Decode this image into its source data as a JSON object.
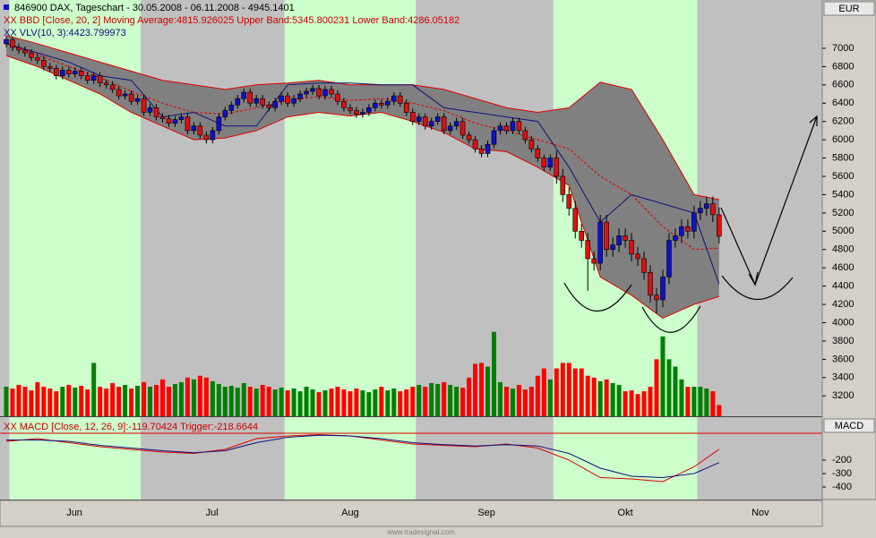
{
  "chart_data": [
    {
      "type": "candlestick",
      "title": "846900  DAX, Tageschart - 30.05.2008 - 06.11.2008 - 4945.1401",
      "axis_label": "EUR",
      "xlim": [
        -1,
        130.5
      ],
      "xticks": [
        {
          "value": 10.9,
          "label": "Jun"
        },
        {
          "value": 32.9,
          "label": "Jul"
        },
        {
          "value": 55,
          "label": "Aug"
        },
        {
          "value": 76.8,
          "label": "Sep"
        },
        {
          "value": 99,
          "label": "Okt"
        },
        {
          "value": 120.6,
          "label": "Nov"
        }
      ],
      "ylim": [
        2977,
        7528
      ],
      "yticks": [
        3200,
        3400,
        3600,
        3800,
        4000,
        4200,
        4400,
        4600,
        4800,
        5000,
        5200,
        5400,
        5600,
        5800,
        6000,
        6200,
        6400,
        6600,
        6800,
        7000
      ],
      "shading": [
        {
          "from": 0.5,
          "to": 21.5,
          "color": "#ccffcc"
        },
        {
          "from": 44.5,
          "to": 65.5,
          "color": "#ccffcc"
        },
        {
          "from": 87.5,
          "to": 110.5,
          "color": "#ccffcc"
        }
      ],
      "up_color": "#1010c8",
      "down_color": "#dd1010",
      "open": [
        7050,
        7096,
        7010,
        6980,
        6950,
        6900,
        6870,
        6800,
        6780,
        6700,
        6760,
        6720,
        6750,
        6700,
        6650,
        6700,
        6620,
        6600,
        6550,
        6480,
        6500,
        6420,
        6450,
        6300,
        6350,
        6250,
        6230,
        6180,
        6220,
        6250,
        6100,
        6150,
        6050,
        6000,
        6100,
        6250,
        6320,
        6380,
        6450,
        6520,
        6400,
        6450,
        6380,
        6350,
        6420,
        6480,
        6400,
        6450,
        6500,
        6530,
        6560,
        6480,
        6550,
        6500,
        6420,
        6350,
        6320,
        6280,
        6300,
        6350,
        6400,
        6380,
        6420,
        6480,
        6400,
        6300,
        6200,
        6250,
        6150,
        6200,
        6250,
        6100,
        6150,
        6200,
        6050,
        6000,
        5900,
        5850,
        5950,
        6100,
        6150,
        6100,
        6200,
        6100,
        6000,
        5900,
        5800,
        5700,
        5800,
        5600,
        5400,
        5250,
        5000,
        4900,
        4700,
        4650,
        5100,
        4800,
        4850,
        4950,
        4900,
        4750,
        4700,
        4550,
        4300,
        4250,
        4500,
        4900,
        4950,
        5050,
        5000,
        5200,
        5250,
        5300,
        5180
      ],
      "high": [
        7130,
        7130,
        7050,
        7020,
        6990,
        6940,
        6910,
        6840,
        6820,
        6800,
        6800,
        6790,
        6790,
        6740,
        6740,
        6740,
        6660,
        6640,
        6590,
        6540,
        6540,
        6490,
        6490,
        6390,
        6390,
        6290,
        6270,
        6260,
        6290,
        6290,
        6190,
        6190,
        6090,
        6140,
        6290,
        6360,
        6420,
        6490,
        6560,
        6560,
        6490,
        6490,
        6420,
        6460,
        6520,
        6520,
        6490,
        6540,
        6570,
        6600,
        6600,
        6590,
        6590,
        6540,
        6460,
        6390,
        6360,
        6340,
        6390,
        6440,
        6440,
        6460,
        6520,
        6520,
        6440,
        6340,
        6290,
        6290,
        6240,
        6290,
        6290,
        6190,
        6240,
        6240,
        6090,
        6040,
        5940,
        5990,
        6140,
        6190,
        6190,
        6240,
        6240,
        6140,
        6040,
        5940,
        5840,
        5840,
        5880,
        5680,
        5480,
        5330,
        5080,
        4980,
        4780,
        5180,
        5180,
        4930,
        5030,
        5030,
        4980,
        4830,
        4780,
        4630,
        4380,
        4580,
        4980,
        5030,
        5130,
        5130,
        5280,
        5330,
        5380,
        5380,
        5260
      ],
      "low": [
        7010,
        6970,
        6940,
        6910,
        6860,
        6830,
        6760,
        6740,
        6660,
        6660,
        6680,
        6680,
        6660,
        6610,
        6610,
        6580,
        6560,
        6510,
        6440,
        6440,
        6380,
        6380,
        6260,
        6260,
        6210,
        6190,
        6140,
        6140,
        6180,
        6060,
        6060,
        6010,
        5960,
        5960,
        6060,
        6210,
        6280,
        6340,
        6410,
        6360,
        6360,
        6340,
        6310,
        6310,
        6380,
        6360,
        6360,
        6410,
        6460,
        6490,
        6440,
        6440,
        6460,
        6380,
        6310,
        6280,
        6240,
        6240,
        6260,
        6310,
        6340,
        6340,
        6380,
        6360,
        6260,
        6160,
        6160,
        6110,
        6110,
        6160,
        6060,
        6060,
        6110,
        6010,
        5960,
        5860,
        5810,
        5810,
        5910,
        6060,
        6060,
        6060,
        6060,
        5960,
        5860,
        5760,
        5660,
        5660,
        5520,
        5320,
        5170,
        4920,
        4820,
        4350,
        4570,
        4570,
        4720,
        4720,
        4770,
        4820,
        4670,
        4620,
        4470,
        4220,
        4100,
        4170,
        4420,
        4820,
        4870,
        4920,
        4920,
        5120,
        5170,
        5100,
        4865
      ],
      "close": [
        7096,
        7010,
        6980,
        6950,
        6900,
        6870,
        6800,
        6780,
        6700,
        6760,
        6720,
        6750,
        6700,
        6650,
        6700,
        6620,
        6600,
        6550,
        6480,
        6500,
        6420,
        6450,
        6300,
        6350,
        6250,
        6230,
        6180,
        6220,
        6250,
        6100,
        6150,
        6050,
        6000,
        6100,
        6250,
        6320,
        6380,
        6450,
        6520,
        6400,
        6450,
        6380,
        6350,
        6420,
        6480,
        6400,
        6450,
        6500,
        6530,
        6560,
        6480,
        6550,
        6500,
        6420,
        6350,
        6320,
        6280,
        6300,
        6350,
        6400,
        6380,
        6420,
        6480,
        6400,
        6300,
        6200,
        6250,
        6150,
        6200,
        6250,
        6100,
        6150,
        6200,
        6050,
        6000,
        5900,
        5850,
        5950,
        6100,
        6150,
        6100,
        6200,
        6100,
        6000,
        5900,
        5800,
        5700,
        5800,
        5600,
        5400,
        5250,
        5000,
        4900,
        4700,
        4650,
        5100,
        4800,
        4850,
        4950,
        4900,
        4750,
        4700,
        4550,
        4300,
        4250,
        4500,
        4900,
        4950,
        5050,
        5000,
        5200,
        5250,
        5300,
        5180,
        4945
      ],
      "volume": {
        "up_color": "#008000",
        "down_color": "#ff0000",
        "values": [
          3300,
          3280,
          3320,
          3300,
          3260,
          3350,
          3300,
          3280,
          3250,
          3300,
          3320,
          3290,
          3310,
          3270,
          3560,
          3300,
          3280,
          3340,
          3300,
          3320,
          3280,
          3310,
          3350,
          3300,
          3320,
          3380,
          3300,
          3330,
          3350,
          3400,
          3380,
          3420,
          3400,
          3360,
          3330,
          3300,
          3310,
          3290,
          3340,
          3300,
          3280,
          3320,
          3300,
          3270,
          3290,
          3260,
          3280,
          3250,
          3300,
          3270,
          3240,
          3260,
          3280,
          3300,
          3270,
          3250,
          3280,
          3260,
          3240,
          3270,
          3300,
          3260,
          3280,
          3250,
          3270,
          3300,
          3320,
          3300,
          3340,
          3330,
          3350,
          3320,
          3300,
          3290,
          3400,
          3550,
          3560,
          3520,
          3900,
          3350,
          3300,
          3280,
          3320,
          3270,
          3300,
          3420,
          3500,
          3380,
          3500,
          3560,
          3560,
          3500,
          3500,
          3420,
          3400,
          3360,
          3380,
          3340,
          3320,
          3250,
          3260,
          3220,
          3250,
          3300,
          3600,
          3850,
          3600,
          3520,
          3380,
          3300,
          3300,
          3300,
          3280,
          3250,
          3100
        ]
      },
      "bollinger": {
        "label": "XX BBD [Close, 20, 2] Moving Average:4815.926025 Upper Band:5345.800231 Lower Band:4286.05182",
        "color": "#dd0000",
        "fill": "#808080",
        "x": [
          0,
          5,
          10,
          15,
          20,
          25,
          30,
          35,
          40,
          45,
          50,
          55,
          60,
          65,
          70,
          75,
          80,
          85,
          90,
          95,
          100,
          105,
          110,
          114
        ],
        "moving_average": [
          7050,
          6930,
          6800,
          6680,
          6530,
          6400,
          6300,
          6280,
          6350,
          6430,
          6470,
          6430,
          6450,
          6400,
          6320,
          6180,
          6100,
          6000,
          5900,
          5600,
          5400,
          5050,
          4800,
          4815.926025
        ],
        "upper_band": [
          7140,
          7050,
          6950,
          6850,
          6750,
          6650,
          6600,
          6550,
          6600,
          6620,
          6650,
          6600,
          6600,
          6600,
          6550,
          6450,
          6350,
          6300,
          6350,
          6630,
          6550,
          6000,
          5400,
          5345.800231
        ],
        "lower_band": [
          6920,
          6800,
          6650,
          6500,
          6300,
          6150,
          6000,
          6020,
          6100,
          6250,
          6300,
          6260,
          6300,
          6200,
          6080,
          5900,
          5870,
          5700,
          5500,
          4500,
          4300,
          4050,
          4200,
          4286.05182
        ]
      },
      "vlv": {
        "label": "XX VLV(10, 3):4423.799973",
        "color": "#10107a",
        "x": [
          0,
          5,
          10,
          15,
          20,
          25,
          30,
          35,
          40,
          45,
          50,
          55,
          60,
          65,
          70,
          75,
          80,
          85,
          90,
          95,
          100,
          105,
          110,
          114
        ],
        "values": [
          7050,
          6950,
          6850,
          6700,
          6650,
          6250,
          6300,
          6150,
          6150,
          6600,
          6620,
          6620,
          6600,
          6600,
          6350,
          6300,
          6250,
          6200,
          5700,
          5100,
          5400,
          5300,
          5200,
          4423.799973
        ]
      }
    },
    {
      "type": "line",
      "title": "XX MACD [Close, 12, 26, 9]:-119.70424 Trigger:-218.6644",
      "axis_label": "MACD",
      "ylim": [
        -493,
        113
      ],
      "yticks": [
        -200,
        -300,
        -400
      ],
      "x": [
        0,
        5,
        10,
        15,
        20,
        25,
        30,
        35,
        40,
        45,
        50,
        55,
        60,
        65,
        70,
        75,
        80,
        85,
        90,
        95,
        100,
        105,
        110,
        114
      ],
      "series": [
        {
          "color": "#dd0000",
          "values": [
            -60,
            -40,
            -70,
            -100,
            -120,
            -140,
            -150,
            -120,
            -40,
            -20,
            -10,
            -20,
            -50,
            -80,
            -90,
            -100,
            -80,
            -110,
            -200,
            -330,
            -340,
            -360,
            -250,
            -119.70424
          ]
        },
        {
          "color": "#10107a",
          "values": [
            -50,
            -50,
            -60,
            -90,
            -110,
            -130,
            -145,
            -130,
            -70,
            -30,
            -15,
            -20,
            -40,
            -70,
            -85,
            -95,
            -85,
            -95,
            -150,
            -260,
            -320,
            -330,
            -300,
            -218.6644
          ]
        }
      ]
    }
  ],
  "footer": "www.tradesignal.com"
}
